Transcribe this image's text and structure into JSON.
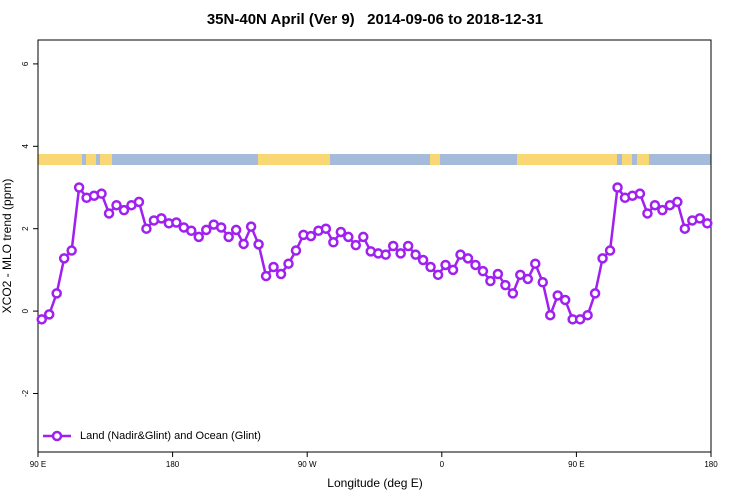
{
  "chart_data": {
    "type": "line",
    "title": "35N-40N April (Ver 9)   2014-09-06 to 2018-12-31",
    "x_label": "Longitude (deg E)",
    "y_label": "XCO2 - MLO trend (ppm)",
    "x": [
      92.5,
      97.5,
      102.5,
      107.5,
      112.5,
      117.5,
      122.5,
      127.5,
      132.5,
      137.5,
      142.5,
      147.5,
      152.5,
      157.5,
      162.5,
      167.5,
      172.5,
      177.5,
      182.5,
      187.5,
      192.5,
      197.5,
      202.5,
      207.5,
      212.5,
      217.5,
      222.5,
      227.5,
      232.5,
      237.5,
      242.5,
      247.5,
      252.5,
      257.5,
      262.5,
      267.5,
      272.5,
      277.5,
      282.5,
      287.5,
      292.5,
      297.5,
      302.5,
      307.5,
      312.5,
      317.5,
      322.5,
      327.5,
      332.5,
      337.5,
      342.5,
      347.5,
      352.5,
      357.5,
      362.5,
      367.5,
      372.5,
      377.5,
      382.5,
      387.5,
      392.5,
      397.5,
      402.5,
      407.5,
      412.5,
      417.5,
      422.5,
      427.5,
      432.5,
      437.5,
      442.5,
      447.5,
      452.5,
      457.5,
      462.5,
      467.5,
      472.5,
      477.5,
      482.5,
      487.5,
      492.5,
      497.5,
      502.5,
      507.5,
      512.5,
      517.5,
      522.5,
      527.5,
      532.5,
      537.5
    ],
    "series": [
      {
        "name": "Land (Nadir&Glint) and Ocean (Glint)",
        "color": "#a020f0",
        "values": [
          -0.2,
          -0.08,
          0.43,
          1.28,
          1.47,
          3.0,
          2.75,
          2.8,
          2.85,
          2.37,
          2.57,
          2.45,
          2.57,
          2.65,
          2.0,
          2.2,
          2.25,
          2.13,
          2.15,
          2.03,
          1.95,
          1.8,
          1.97,
          2.1,
          2.03,
          1.8,
          1.97,
          1.63,
          2.05,
          1.62,
          0.85,
          1.07,
          0.9,
          1.15,
          1.47,
          1.85,
          1.82,
          1.95,
          2.0,
          1.67,
          1.92,
          1.8,
          1.6,
          1.8,
          1.45,
          1.4,
          1.37,
          1.58,
          1.4,
          1.58,
          1.37,
          1.24,
          1.07,
          0.88,
          1.12,
          1.0,
          1.37,
          1.28,
          1.12,
          0.97,
          0.73,
          0.9,
          0.63,
          0.43,
          0.88,
          0.78,
          1.15,
          0.7,
          -0.1,
          0.38,
          0.27,
          -0.2,
          -0.2,
          -0.1,
          0.43,
          1.28,
          1.47,
          3.0,
          2.75,
          2.8,
          2.85,
          2.37,
          2.57,
          2.45,
          2.57,
          2.65,
          2.0,
          2.2,
          2.25,
          2.13
        ]
      }
    ],
    "xlim": [
      90,
      540
    ],
    "xticks": [
      {
        "value": 90,
        "label": "90 E"
      },
      180,
      {
        "value": 270,
        "label": "90 W"
      },
      {
        "value": 360,
        "label": "0"
      },
      {
        "value": 450,
        "label": "90 E"
      },
      {
        "value": 540,
        "label": "180"
      }
    ],
    "ylim": [
      -3.42,
      6.58
    ],
    "yticks": [
      -2,
      0,
      2,
      4,
      6
    ],
    "legend": "bottom-left"
  }
}
